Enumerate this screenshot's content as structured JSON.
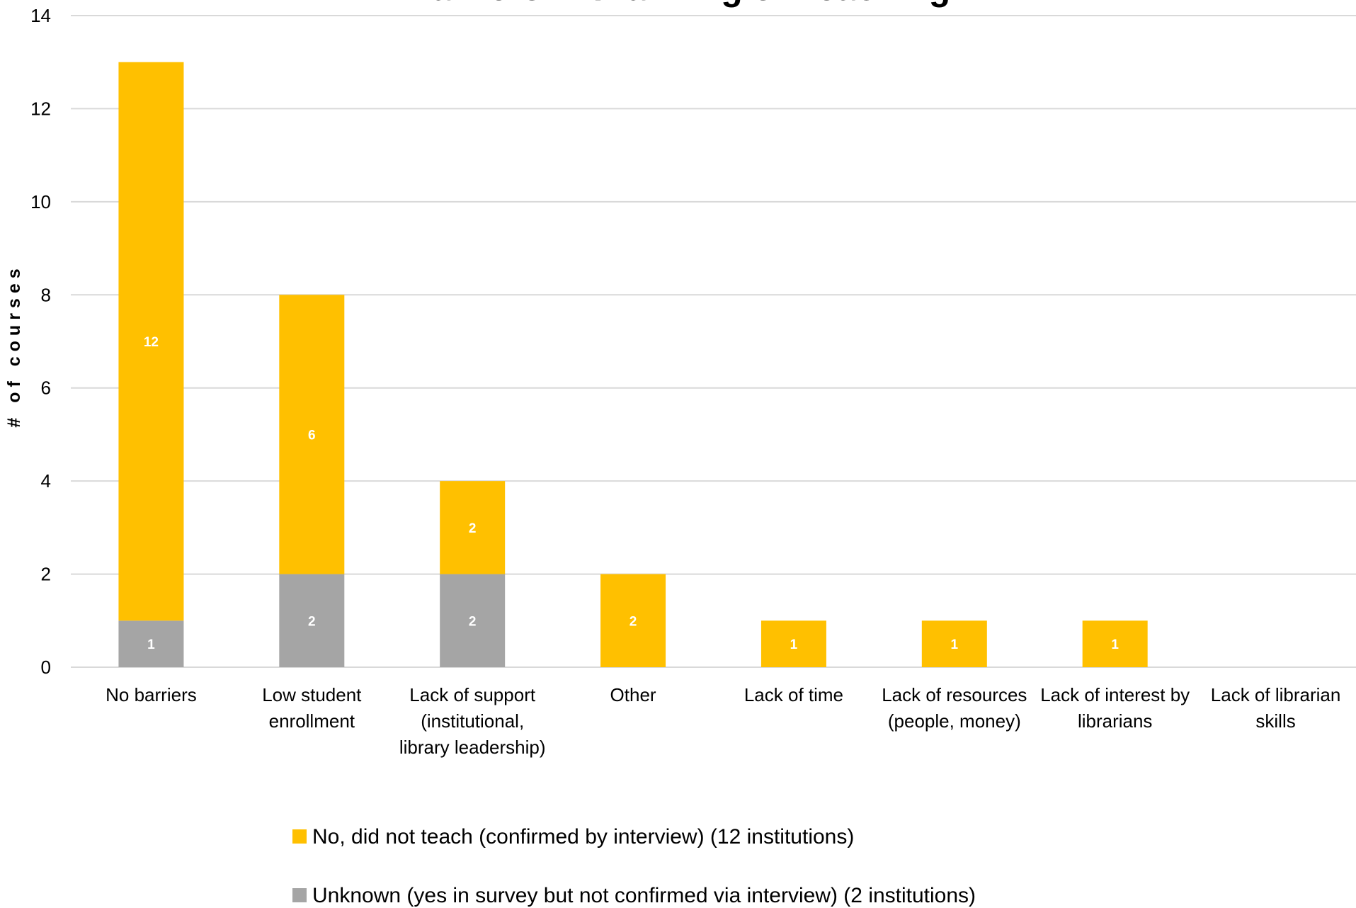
{
  "chart_data": {
    "type": "bar",
    "stacked": true,
    "title": "Barriers in Planning or Teaching",
    "xlabel": "",
    "ylabel": "# of courses",
    "ylim": [
      0,
      14
    ],
    "yticks": [
      0,
      2,
      4,
      6,
      8,
      10,
      12,
      14
    ],
    "grid": true,
    "legend_position": "bottom",
    "categories": [
      [
        "No barriers"
      ],
      [
        "Low student",
        "enrollment"
      ],
      [
        "Lack of support",
        "(institutional,",
        "library leadership)"
      ],
      [
        "Other"
      ],
      [
        "Lack of time"
      ],
      [
        "Lack of resources",
        "(people, money)"
      ],
      [
        "Lack of interest by",
        "librarians"
      ],
      [
        "Lack of librarian",
        "skills"
      ]
    ],
    "series": [
      {
        "name": "Unknown (yes in survey but not confirmed via interview) (2 institutions)",
        "color": "#a5a5a5",
        "values": [
          1,
          2,
          2,
          0,
          0,
          0,
          0,
          0
        ]
      },
      {
        "name": "No, did not teach (confirmed by interview) (12 institutions)",
        "color": "#ffc000",
        "values": [
          12,
          6,
          2,
          2,
          1,
          1,
          1,
          0
        ]
      }
    ],
    "legend_order": [
      1,
      0
    ]
  }
}
